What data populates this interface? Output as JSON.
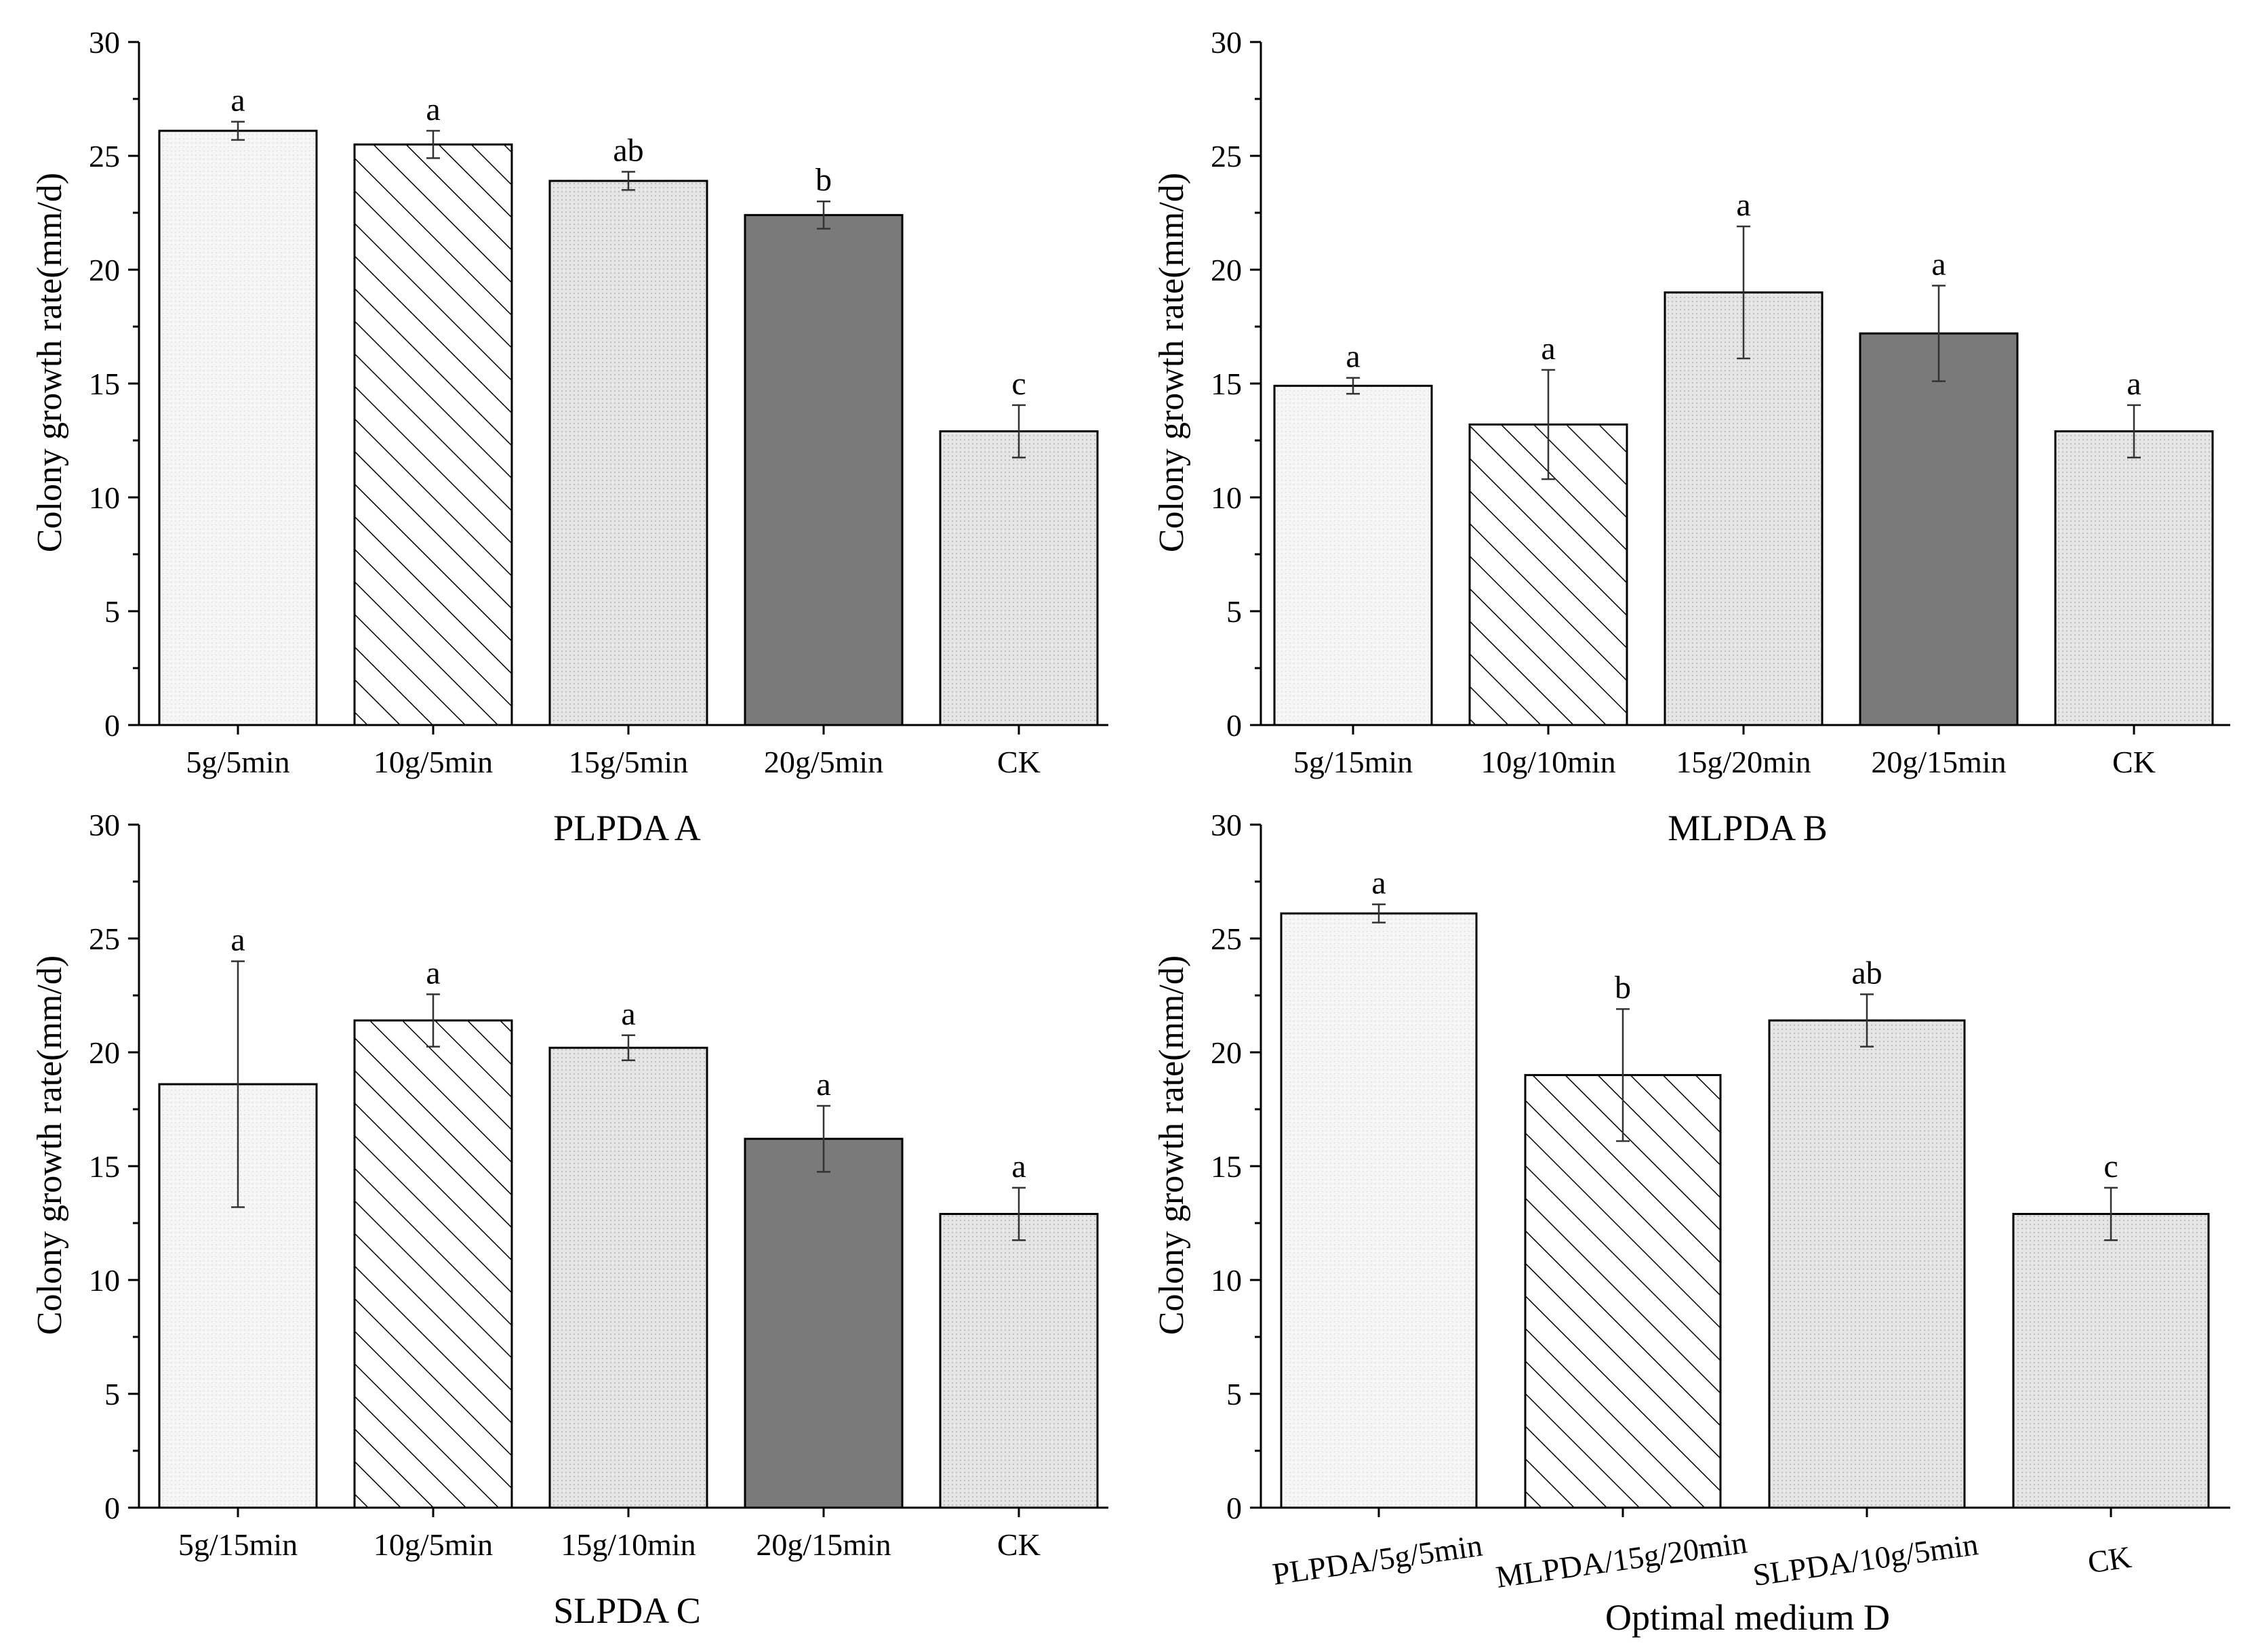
{
  "figure": {
    "y_axis_label": "Colony growth rate(mm/d)"
  },
  "chart_data": [
    {
      "type": "bar",
      "title": "PLPDA A",
      "xlabel": "PLPDA A",
      "ylabel": "Colony growth rate(mm/d)",
      "ylim": [
        0,
        30
      ],
      "yticks": [
        0,
        5,
        10,
        15,
        20,
        25,
        30
      ],
      "categories": [
        "5g/5min",
        "10g/5min",
        "15g/5min",
        "20g/5min",
        "CK"
      ],
      "values": [
        26.1,
        25.5,
        23.9,
        22.4,
        12.9
      ],
      "errors": [
        0.4,
        0.6,
        0.4,
        0.6,
        1.15
      ],
      "labels": [
        "a",
        "a",
        "ab",
        "b",
        "c"
      ],
      "fills": [
        "light",
        "hatch",
        "dots",
        "dark",
        "dots"
      ],
      "colors": {
        "light": "#f4f4f4",
        "hatch": "#ffffff",
        "dots": "#e3e3e3",
        "dark": "#7a7a7a"
      }
    },
    {
      "type": "bar",
      "title": "MLPDA B",
      "xlabel": "MLPDA B",
      "ylabel": "Colony growth rate(mm/d)",
      "ylim": [
        0,
        30
      ],
      "yticks": [
        0,
        5,
        10,
        15,
        20,
        25,
        30
      ],
      "categories": [
        "5g/15min",
        "10g/10min",
        "15g/20min",
        "20g/15min",
        "CK"
      ],
      "values": [
        14.9,
        13.2,
        19.0,
        17.2,
        12.9
      ],
      "errors": [
        0.35,
        2.4,
        2.9,
        2.1,
        1.15
      ],
      "labels": [
        "a",
        "a",
        "a",
        "a",
        "a"
      ],
      "fills": [
        "light",
        "hatch",
        "dots",
        "dark",
        "dots"
      ],
      "colors": {
        "light": "#f4f4f4",
        "hatch": "#ffffff",
        "dots": "#e3e3e3",
        "dark": "#7a7a7a"
      }
    },
    {
      "type": "bar",
      "title": "SLPDA C",
      "xlabel": "SLPDA C",
      "ylabel": "Colony growth rate(mm/d)",
      "ylim": [
        0,
        30
      ],
      "yticks": [
        0,
        5,
        10,
        15,
        20,
        25,
        30
      ],
      "categories": [
        "5g/15min",
        "10g/5min",
        "15g/10min",
        "20g/15min",
        "CK"
      ],
      "values": [
        18.6,
        21.4,
        20.2,
        16.2,
        12.9
      ],
      "errors": [
        5.4,
        1.15,
        0.55,
        1.45,
        1.15
      ],
      "labels": [
        "a",
        "a",
        "a",
        "a",
        "a"
      ],
      "fills": [
        "light",
        "hatch",
        "dots",
        "dark",
        "dots"
      ],
      "colors": {
        "light": "#f4f4f4",
        "hatch": "#ffffff",
        "dots": "#e3e3e3",
        "dark": "#7a7a7a"
      }
    },
    {
      "type": "bar",
      "title": "Optimal medium D",
      "xlabel": "Optimal medium D",
      "ylabel": "Colony growth rate(mm/d)",
      "ylim": [
        0,
        30
      ],
      "yticks": [
        0,
        5,
        10,
        15,
        20,
        25,
        30
      ],
      "categories": [
        "PLPDA/5g/5min",
        "MLPDA/15g/20min",
        "SLPDA/10g/5min",
        "CK"
      ],
      "values": [
        26.1,
        19.0,
        21.4,
        12.9
      ],
      "errors": [
        0.4,
        2.9,
        1.15,
        1.15
      ],
      "labels": [
        "a",
        "b",
        "ab",
        "c"
      ],
      "fills": [
        "light",
        "hatch",
        "dots",
        "dots"
      ],
      "colors": {
        "light": "#f4f4f4",
        "hatch": "#ffffff",
        "dots": "#e3e3e3",
        "dark": "#7a7a7a"
      }
    }
  ]
}
